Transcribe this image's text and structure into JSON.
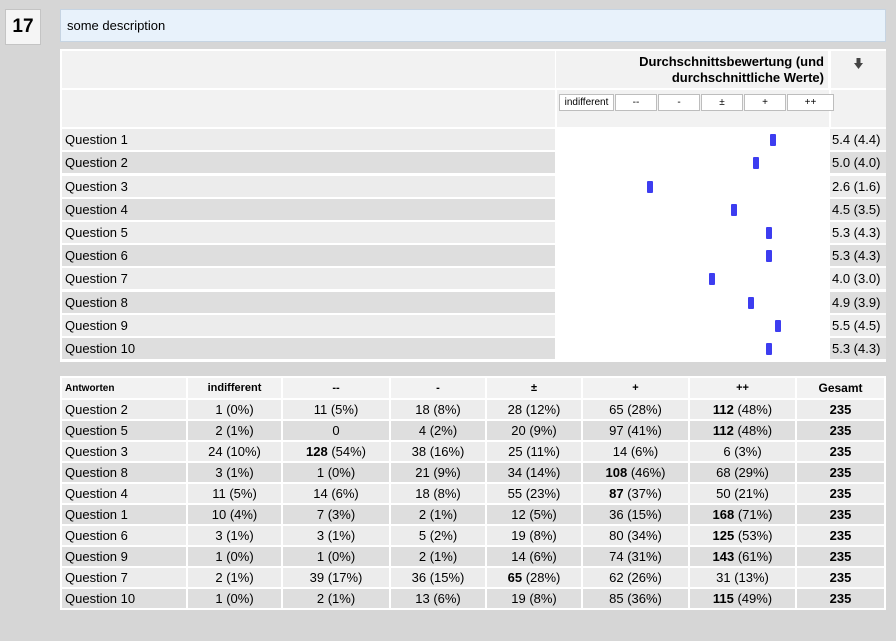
{
  "number": "17",
  "description": "some description",
  "chart": {
    "title_line1": "Durchschnittsbewertung (und",
    "title_line2": "durchschnittliche Werte)",
    "sort_icon": "arrow-down-icon",
    "scale": [
      "indifferent",
      "--",
      "-",
      "±",
      "+",
      "++"
    ],
    "marker_color": "#3d3df0",
    "scale_min": 1,
    "scale_max": 6,
    "questions": [
      {
        "label": "Question 1",
        "avg": 5.4,
        "value": "5.4 (4.4)"
      },
      {
        "label": "Question 2",
        "avg": 5.0,
        "value": "5.0 (4.0)"
      },
      {
        "label": "Question 3",
        "avg": 2.6,
        "value": "2.6 (1.6)"
      },
      {
        "label": "Question 4",
        "avg": 4.5,
        "value": "4.5 (3.5)"
      },
      {
        "label": "Question 5",
        "avg": 5.3,
        "value": "5.3 (4.3)"
      },
      {
        "label": "Question 6",
        "avg": 5.3,
        "value": "5.3 (4.3)"
      },
      {
        "label": "Question 7",
        "avg": 4.0,
        "value": "4.0 (3.0)"
      },
      {
        "label": "Question 8",
        "avg": 4.9,
        "value": "4.9 (3.9)"
      },
      {
        "label": "Question 9",
        "avg": 5.5,
        "value": "5.5 (4.5)"
      },
      {
        "label": "Question 10",
        "avg": 5.3,
        "value": "5.3 (4.3)"
      }
    ]
  },
  "answers": {
    "headers": [
      "Antworten",
      "indifferent",
      "--",
      "-",
      "±",
      "+",
      "++",
      "Gesamt"
    ],
    "rows": [
      {
        "q": "Question 2",
        "cells": [
          [
            "1",
            "(0%)"
          ],
          [
            "11",
            "(5%)"
          ],
          [
            "18",
            "(8%)"
          ],
          [
            "28",
            "(12%)"
          ],
          [
            "65",
            "(28%)"
          ],
          [
            "112",
            "(48%)"
          ]
        ],
        "bold": 5,
        "total": "235"
      },
      {
        "q": "Question 5",
        "cells": [
          [
            "2",
            "(1%)"
          ],
          [
            "0",
            ""
          ],
          [
            "4",
            "(2%)"
          ],
          [
            "20",
            "(9%)"
          ],
          [
            "97",
            "(41%)"
          ],
          [
            "112",
            "(48%)"
          ]
        ],
        "bold": 5,
        "total": "235"
      },
      {
        "q": "Question 3",
        "cells": [
          [
            "24",
            "(10%)"
          ],
          [
            "128",
            "(54%)"
          ],
          [
            "38",
            "(16%)"
          ],
          [
            "25",
            "(11%)"
          ],
          [
            "14",
            "(6%)"
          ],
          [
            "6",
            "(3%)"
          ]
        ],
        "bold": 1,
        "total": "235"
      },
      {
        "q": "Question 8",
        "cells": [
          [
            "3",
            "(1%)"
          ],
          [
            "1",
            "(0%)"
          ],
          [
            "21",
            "(9%)"
          ],
          [
            "34",
            "(14%)"
          ],
          [
            "108",
            "(46%)"
          ],
          [
            "68",
            "(29%)"
          ]
        ],
        "bold": 4,
        "total": "235"
      },
      {
        "q": "Question 4",
        "cells": [
          [
            "11",
            "(5%)"
          ],
          [
            "14",
            "(6%)"
          ],
          [
            "18",
            "(8%)"
          ],
          [
            "55",
            "(23%)"
          ],
          [
            "87",
            "(37%)"
          ],
          [
            "50",
            "(21%)"
          ]
        ],
        "bold": 4,
        "total": "235"
      },
      {
        "q": "Question 1",
        "cells": [
          [
            "10",
            "(4%)"
          ],
          [
            "7",
            "(3%)"
          ],
          [
            "2",
            "(1%)"
          ],
          [
            "12",
            "(5%)"
          ],
          [
            "36",
            "(15%)"
          ],
          [
            "168",
            "(71%)"
          ]
        ],
        "bold": 5,
        "total": "235"
      },
      {
        "q": "Question 6",
        "cells": [
          [
            "3",
            "(1%)"
          ],
          [
            "3",
            "(1%)"
          ],
          [
            "5",
            "(2%)"
          ],
          [
            "19",
            "(8%)"
          ],
          [
            "80",
            "(34%)"
          ],
          [
            "125",
            "(53%)"
          ]
        ],
        "bold": 5,
        "total": "235"
      },
      {
        "q": "Question 9",
        "cells": [
          [
            "1",
            "(0%)"
          ],
          [
            "1",
            "(0%)"
          ],
          [
            "2",
            "(1%)"
          ],
          [
            "14",
            "(6%)"
          ],
          [
            "74",
            "(31%)"
          ],
          [
            "143",
            "(61%)"
          ]
        ],
        "bold": 5,
        "total": "235"
      },
      {
        "q": "Question 7",
        "cells": [
          [
            "2",
            "(1%)"
          ],
          [
            "39",
            "(17%)"
          ],
          [
            "36",
            "(15%)"
          ],
          [
            "65",
            "(28%)"
          ],
          [
            "62",
            "(26%)"
          ],
          [
            "31",
            "(13%)"
          ]
        ],
        "bold": 3,
        "total": "235"
      },
      {
        "q": "Question 10",
        "cells": [
          [
            "1",
            "(0%)"
          ],
          [
            "2",
            "(1%)"
          ],
          [
            "13",
            "(6%)"
          ],
          [
            "19",
            "(8%)"
          ],
          [
            "85",
            "(36%)"
          ],
          [
            "115",
            "(49%)"
          ]
        ],
        "bold": 5,
        "total": "235"
      }
    ]
  }
}
